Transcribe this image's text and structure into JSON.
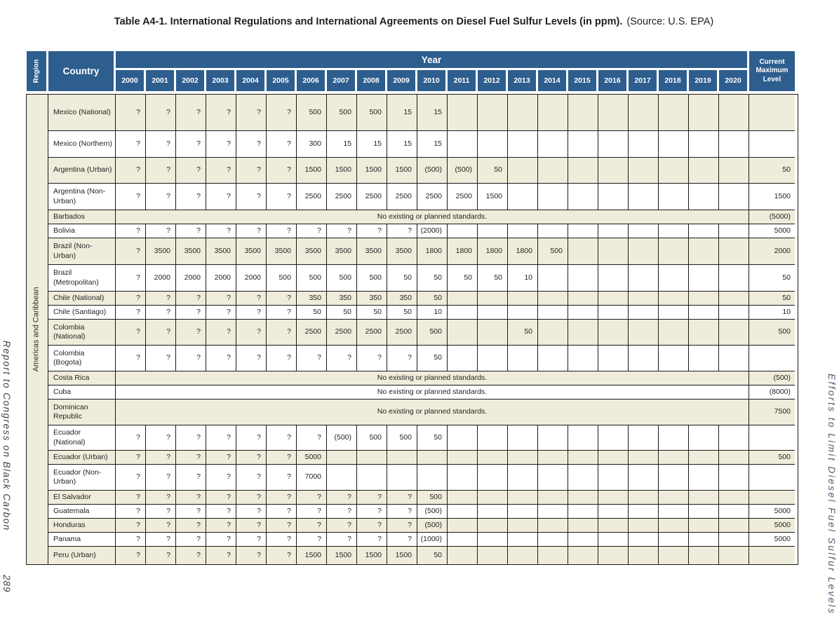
{
  "title": {
    "main": "Table A4-1.  International Regulations and International Agreements on Diesel Fuel Sulfur Levels (in ppm).",
    "source": "(Source: U.S. EPA)"
  },
  "margins": {
    "left_title": "Report to Congress on Black Carbon",
    "page_number": "289",
    "right_title": "Efforts to Limit Diesel Fuel Sulfur Levels"
  },
  "colors": {
    "header_blue": "#2d5e8e",
    "stripe_cream": "#efecdb"
  },
  "table": {
    "region_header": "Region",
    "country_header": "Country",
    "year_header": "Year",
    "max_header": "Current Maximum Level",
    "years": [
      "2000",
      "2001",
      "2002",
      "2003",
      "2004",
      "2005",
      "2006",
      "2007",
      "2008",
      "2009",
      "2010",
      "2011",
      "2012",
      "2013",
      "2014",
      "2015",
      "2016",
      "2017",
      "2018",
      "2019",
      "2020"
    ],
    "region_label": "Americas and Caribbean",
    "no_standards_note": "No existing or planned standards.",
    "rows": [
      {
        "country": "Mexico (National)",
        "values": [
          "?",
          "?",
          "?",
          "?",
          "?",
          "?",
          "500",
          "500",
          "500",
          "15",
          "15",
          "",
          "",
          "",
          "",
          "",
          "",
          "",
          "",
          "",
          ""
        ],
        "max": ""
      },
      {
        "country": "Mexico (Northern)",
        "values": [
          "?",
          "?",
          "?",
          "?",
          "?",
          "?",
          "300",
          "15",
          "15",
          "15",
          "15",
          "",
          "",
          "",
          "",
          "",
          "",
          "",
          "",
          "",
          ""
        ],
        "max": ""
      },
      {
        "country": "Argentina (Urban)",
        "values": [
          "?",
          "?",
          "?",
          "?",
          "?",
          "?",
          "1500",
          "1500",
          "1500",
          "1500",
          "(500)",
          "(500)",
          "50",
          "",
          "",
          "",
          "",
          "",
          "",
          "",
          ""
        ],
        "max": "50"
      },
      {
        "country": "Argentina (Non-Urban)",
        "values": [
          "?",
          "?",
          "?",
          "?",
          "?",
          "?",
          "2500",
          "2500",
          "2500",
          "2500",
          "2500",
          "2500",
          "1500",
          "",
          "",
          "",
          "",
          "",
          "",
          "",
          ""
        ],
        "max": "1500"
      },
      {
        "country": "Barbados",
        "note": true,
        "max": "(5000)"
      },
      {
        "country": "Bolivia",
        "values": [
          "?",
          "?",
          "?",
          "?",
          "?",
          "?",
          "?",
          "?",
          "?",
          "?",
          "(2000)",
          "",
          "",
          "",
          "",
          "",
          "",
          "",
          "",
          "",
          ""
        ],
        "max": "5000"
      },
      {
        "country": "Brazil (Non-Urban)",
        "values": [
          "?",
          "3500",
          "3500",
          "3500",
          "3500",
          "3500",
          "3500",
          "3500",
          "3500",
          "3500",
          "1800",
          "1800",
          "1800",
          "1800",
          "500",
          "",
          "",
          "",
          "",
          "",
          ""
        ],
        "max": "2000"
      },
      {
        "country": "Brazil (Metropolitan)",
        "values": [
          "?",
          "2000",
          "2000",
          "2000",
          "2000",
          "500",
          "500",
          "500",
          "500",
          "50",
          "50",
          "50",
          "50",
          "10",
          "",
          "",
          "",
          "",
          "",
          "",
          ""
        ],
        "max": "50"
      },
      {
        "country": "Chile (National)",
        "values": [
          "?",
          "?",
          "?",
          "?",
          "?",
          "?",
          "350",
          "350",
          "350",
          "350",
          "50",
          "",
          "",
          "",
          "",
          "",
          "",
          "",
          "",
          "",
          ""
        ],
        "max": "50"
      },
      {
        "country": "Chile (Santiago)",
        "values": [
          "?",
          "?",
          "?",
          "?",
          "?",
          "?",
          "50",
          "50",
          "50",
          "50",
          "10",
          "",
          "",
          "",
          "",
          "",
          "",
          "",
          "",
          "",
          ""
        ],
        "max": "10"
      },
      {
        "country": "Colombia (National)",
        "values": [
          "?",
          "?",
          "?",
          "?",
          "?",
          "?",
          "2500",
          "2500",
          "2500",
          "2500",
          "500",
          "",
          "",
          "50",
          "",
          "",
          "",
          "",
          "",
          "",
          ""
        ],
        "max": "500"
      },
      {
        "country": "Colombia (Bogota)",
        "values": [
          "?",
          "?",
          "?",
          "?",
          "?",
          "?",
          "?",
          "?",
          "?",
          "?",
          "50",
          "",
          "",
          "",
          "",
          "",
          "",
          "",
          "",
          "",
          ""
        ],
        "max": ""
      },
      {
        "country": "Costa Rica",
        "note": true,
        "max": "(500)"
      },
      {
        "country": "Cuba",
        "note": true,
        "max": "(8000)"
      },
      {
        "country": "Dominican Republic",
        "note": true,
        "max": "7500"
      },
      {
        "country": "Ecuador (National)",
        "values": [
          "?",
          "?",
          "?",
          "?",
          "?",
          "?",
          "?",
          "(500)",
          "500",
          "500",
          "50",
          "",
          "",
          "",
          "",
          "",
          "",
          "",
          "",
          "",
          ""
        ],
        "max": ""
      },
      {
        "country": "Ecuador (Urban)",
        "values": [
          "?",
          "?",
          "?",
          "?",
          "?",
          "?",
          "5000",
          "",
          "",
          "",
          "",
          "",
          "",
          "",
          "",
          "",
          "",
          "",
          "",
          "",
          ""
        ],
        "max": "500"
      },
      {
        "country": "Ecuador (Non-Urban)",
        "values": [
          "?",
          "?",
          "?",
          "?",
          "?",
          "?",
          "7000",
          "",
          "",
          "",
          "",
          "",
          "",
          "",
          "",
          "",
          "",
          "",
          "",
          "",
          ""
        ],
        "max": ""
      },
      {
        "country": "El Salvador",
        "values": [
          "?",
          "?",
          "?",
          "?",
          "?",
          "?",
          "?",
          "?",
          "?",
          "?",
          "500",
          "",
          "",
          "",
          "",
          "",
          "",
          "",
          "",
          "",
          ""
        ],
        "max": ""
      },
      {
        "country": "Guatemala",
        "values": [
          "?",
          "?",
          "?",
          "?",
          "?",
          "?",
          "?",
          "?",
          "?",
          "?",
          "(500)",
          "",
          "",
          "",
          "",
          "",
          "",
          "",
          "",
          "",
          ""
        ],
        "max": "5000"
      },
      {
        "country": "Honduras",
        "values": [
          "?",
          "?",
          "?",
          "?",
          "?",
          "?",
          "?",
          "?",
          "?",
          "?",
          "(500)",
          "",
          "",
          "",
          "",
          "",
          "",
          "",
          "",
          "",
          ""
        ],
        "max": "5000"
      },
      {
        "country": "Panama",
        "values": [
          "?",
          "?",
          "?",
          "?",
          "?",
          "?",
          "?",
          "?",
          "?",
          "?",
          "(1000)",
          "",
          "",
          "",
          "",
          "",
          "",
          "",
          "",
          "",
          ""
        ],
        "max": "5000"
      },
      {
        "country": "Peru (Urban)",
        "values": [
          "?",
          "?",
          "?",
          "?",
          "?",
          "?",
          "1500",
          "1500",
          "1500",
          "1500",
          "50",
          "",
          "",
          "",
          "",
          "",
          "",
          "",
          "",
          "",
          ""
        ],
        "max": ""
      }
    ]
  }
}
